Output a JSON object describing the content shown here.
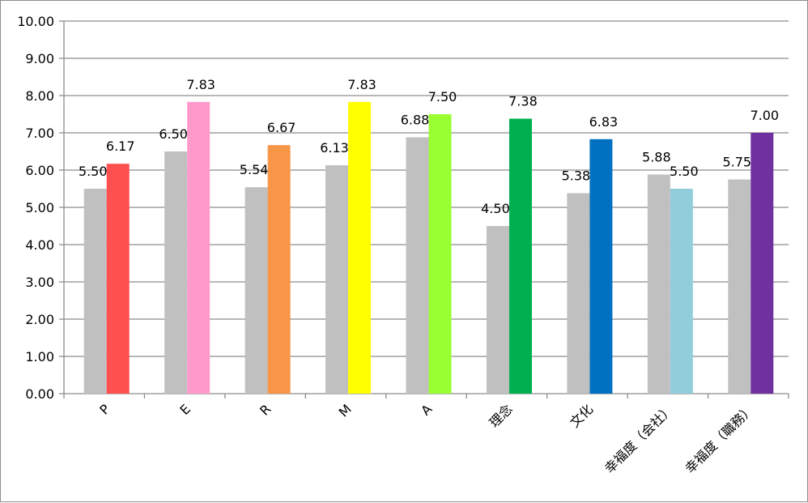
{
  "chart_data": {
    "type": "bar",
    "title": "",
    "xlabel": "",
    "ylabel": "",
    "ylim": [
      0,
      10
    ],
    "yticks": [
      "0.00",
      "1.00",
      "2.00",
      "3.00",
      "4.00",
      "5.00",
      "6.00",
      "7.00",
      "8.00",
      "9.00",
      "10.00"
    ],
    "grid": true,
    "legend": "none",
    "categories": [
      "P",
      "E",
      "R",
      "M",
      "A",
      "理念",
      "文化",
      "幸福度（会社）",
      "幸福度（職務）"
    ],
    "series": [
      {
        "values": [
          5.5,
          6.5,
          5.54,
          6.13,
          6.88,
          4.5,
          5.38,
          5.88,
          5.75
        ],
        "labels": [
          "5.50",
          "6.50",
          "5.54",
          "6.13",
          "6.88",
          "4.50",
          "5.38",
          "5.88",
          "5.75"
        ],
        "color": "#c0c0c0"
      },
      {
        "values": [
          6.17,
          7.83,
          6.67,
          7.83,
          7.5,
          7.38,
          6.83,
          5.5,
          7.0
        ],
        "labels": [
          "6.17",
          "7.83",
          "6.67",
          "7.83",
          "7.50",
          "7.38",
          "6.83",
          "5.50",
          "7.00"
        ],
        "colors": [
          "#ff5050",
          "#ff99cc",
          "#f79646",
          "#ffff00",
          "#99ff33",
          "#00b050",
          "#0070c0",
          "#92cddc",
          "#7030a0"
        ]
      }
    ]
  }
}
